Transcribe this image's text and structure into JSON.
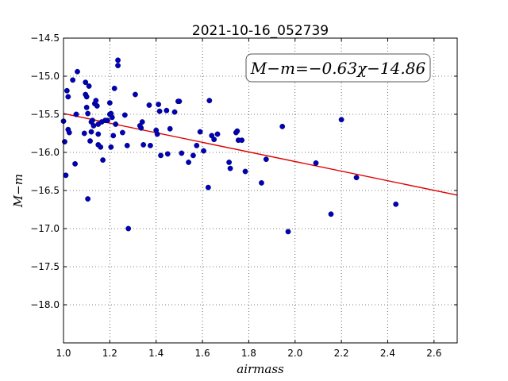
{
  "chart_data": {
    "type": "scatter",
    "title": "2021-10-16_052739",
    "xlabel": "airmass",
    "ylabel": "M−m",
    "xlim": [
      1.0,
      2.7
    ],
    "ylim": [
      -18.5,
      -14.5
    ],
    "y_inverted": true,
    "grid": true,
    "x_ticks": [
      "1.0",
      "1.2",
      "1.4",
      "1.6",
      "1.8",
      "2.0",
      "2.2",
      "2.4",
      "2.6"
    ],
    "y_ticks": [
      "−14.5",
      "−15.0",
      "−15.5",
      "−16.0",
      "−16.5",
      "−17.0",
      "−17.5",
      "−18.0"
    ],
    "annotation": "M−m=−0.63χ−14.86",
    "fit": {
      "slope": -0.63,
      "intercept": -14.86,
      "color": "#e00000"
    },
    "point_color": "#0000b8",
    "points": [
      [
        1.0,
        -15.59
      ],
      [
        1.005,
        -15.86
      ],
      [
        1.01,
        -16.3
      ],
      [
        1.015,
        -15.19
      ],
      [
        1.02,
        -15.27
      ],
      [
        1.02,
        -15.7
      ],
      [
        1.025,
        -15.74
      ],
      [
        1.04,
        -15.05
      ],
      [
        1.05,
        -16.15
      ],
      [
        1.055,
        -15.5
      ],
      [
        1.06,
        -14.94
      ],
      [
        1.09,
        -15.75
      ],
      [
        1.095,
        -15.08
      ],
      [
        1.095,
        -15.24
      ],
      [
        1.1,
        -15.27
      ],
      [
        1.1,
        -15.41
      ],
      [
        1.105,
        -16.61
      ],
      [
        1.105,
        -15.49
      ],
      [
        1.11,
        -15.13
      ],
      [
        1.115,
        -15.85
      ],
      [
        1.12,
        -15.6
      ],
      [
        1.12,
        -15.73
      ],
      [
        1.125,
        -15.58
      ],
      [
        1.13,
        -15.65
      ],
      [
        1.135,
        -15.36
      ],
      [
        1.14,
        -15.32
      ],
      [
        1.145,
        -15.39
      ],
      [
        1.15,
        -15.63
      ],
      [
        1.15,
        -15.76
      ],
      [
        1.15,
        -15.9
      ],
      [
        1.16,
        -15.93
      ],
      [
        1.165,
        -15.6
      ],
      [
        1.17,
        -16.1
      ],
      [
        1.18,
        -15.58
      ],
      [
        1.19,
        -15.58
      ],
      [
        1.2,
        -15.35
      ],
      [
        1.2,
        -15.5
      ],
      [
        1.205,
        -15.49
      ],
      [
        1.205,
        -15.93
      ],
      [
        1.21,
        -15.54
      ],
      [
        1.215,
        -15.78
      ],
      [
        1.22,
        -15.16
      ],
      [
        1.225,
        -15.63
      ],
      [
        1.235,
        -14.79
      ],
      [
        1.235,
        -14.86
      ],
      [
        1.255,
        -15.74
      ],
      [
        1.265,
        -15.51
      ],
      [
        1.275,
        -15.91
      ],
      [
        1.28,
        -17.0
      ],
      [
        1.31,
        -15.24
      ],
      [
        1.33,
        -15.65
      ],
      [
        1.335,
        -15.68
      ],
      [
        1.34,
        -15.6
      ],
      [
        1.345,
        -15.9
      ],
      [
        1.37,
        -15.38
      ],
      [
        1.375,
        -15.91
      ],
      [
        1.4,
        -15.71
      ],
      [
        1.405,
        -15.76
      ],
      [
        1.41,
        -15.37
      ],
      [
        1.415,
        -15.46
      ],
      [
        1.42,
        -16.04
      ],
      [
        1.445,
        -15.45
      ],
      [
        1.45,
        -16.02
      ],
      [
        1.46,
        -15.69
      ],
      [
        1.48,
        -15.47
      ],
      [
        1.495,
        -15.33
      ],
      [
        1.5,
        -15.33
      ],
      [
        1.51,
        -16.01
      ],
      [
        1.54,
        -16.13
      ],
      [
        1.56,
        -16.04
      ],
      [
        1.575,
        -15.91
      ],
      [
        1.59,
        -15.73
      ],
      [
        1.605,
        -15.98
      ],
      [
        1.625,
        -16.46
      ],
      [
        1.63,
        -15.32
      ],
      [
        1.64,
        -15.78
      ],
      [
        1.65,
        -15.83
      ],
      [
        1.665,
        -15.76
      ],
      [
        1.715,
        -16.13
      ],
      [
        1.72,
        -16.21
      ],
      [
        1.745,
        -15.74
      ],
      [
        1.75,
        -15.72
      ],
      [
        1.755,
        -15.84
      ],
      [
        1.77,
        -15.84
      ],
      [
        1.785,
        -16.25
      ],
      [
        1.855,
        -16.4
      ],
      [
        1.875,
        -16.09
      ],
      [
        1.945,
        -15.66
      ],
      [
        1.97,
        -17.04
      ],
      [
        2.09,
        -16.14
      ],
      [
        2.155,
        -16.81
      ],
      [
        2.2,
        -15.57
      ],
      [
        2.265,
        -16.33
      ],
      [
        2.435,
        -16.68
      ]
    ]
  }
}
